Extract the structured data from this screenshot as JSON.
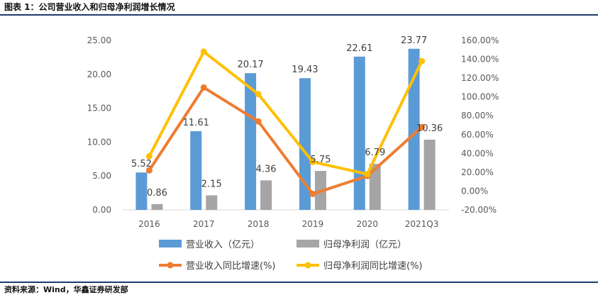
{
  "figure": {
    "title": "图表 1：公司营业收入和归母净利润增长情况",
    "source": "资料来源：Wind，华鑫证券研发部"
  },
  "chart_data": {
    "type": "bar",
    "categories": [
      "2016",
      "2017",
      "2018",
      "2019",
      "2020",
      "2021Q3"
    ],
    "left_axis": {
      "range": [
        0,
        25
      ],
      "ticks": [
        "0.00",
        "5.00",
        "10.00",
        "15.00",
        "20.00",
        "25.00"
      ]
    },
    "right_axis": {
      "range": [
        -20,
        160
      ],
      "ticks": [
        "-20.00%",
        "0.00%",
        "20.00%",
        "40.00%",
        "60.00%",
        "80.00%",
        "100.00%",
        "120.00%",
        "140.00%",
        "160.00%"
      ]
    },
    "grid": false,
    "legend_position": "bottom",
    "series": [
      {
        "name": "营业收入（亿元）",
        "kind": "bar",
        "axis": "left",
        "color": "#5b9bd5",
        "values": [
          5.52,
          11.61,
          20.17,
          19.43,
          22.61,
          23.77
        ],
        "labels": [
          "5.52",
          "11.61",
          "20.17",
          "19.43",
          "22.61",
          "23.77"
        ]
      },
      {
        "name": "归母净利润（亿元）",
        "kind": "bar",
        "axis": "left",
        "color": "#a5a5a5",
        "values": [
          0.86,
          2.15,
          4.36,
          5.75,
          6.79,
          10.36
        ],
        "labels": [
          "0.86",
          "2.15",
          "4.36",
          "5.75",
          "6.79",
          "10.36"
        ]
      },
      {
        "name": "营业收入同比增速(%)",
        "kind": "line",
        "axis": "right",
        "color": "#ed7d31",
        "values": [
          22,
          110,
          74,
          -3,
          16,
          68
        ]
      },
      {
        "name": "归母净利润同比增速(%)",
        "kind": "line",
        "axis": "right",
        "color": "#ffc000",
        "values": [
          37,
          148,
          103,
          31,
          18,
          138
        ]
      }
    ]
  }
}
